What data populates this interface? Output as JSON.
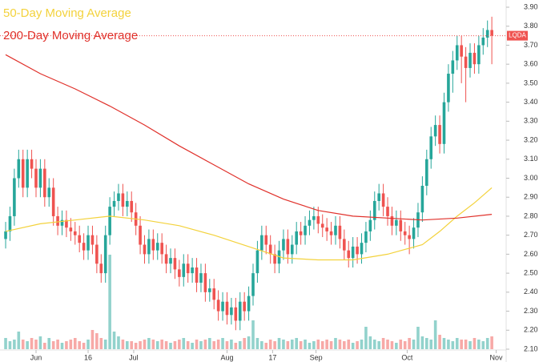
{
  "chart_data": {
    "type": "candlestick",
    "ticker": "LQDA",
    "legend": [
      {
        "label": "50-Day Moving Average",
        "color": "#f3d23c"
      },
      {
        "label": "200-Day Moving Average",
        "color": "#e0302a"
      }
    ],
    "up_color": "#26a69a",
    "down_color": "#ef5350",
    "x": [
      0,
      1,
      2,
      3,
      4,
      5,
      6,
      7,
      8,
      9,
      10,
      11,
      12,
      13,
      14,
      15,
      16,
      17,
      18,
      19,
      20,
      21,
      22,
      23,
      24,
      25,
      26,
      27,
      28,
      29,
      30,
      31,
      32,
      33,
      34,
      35,
      36,
      37,
      38,
      39,
      40,
      41,
      42,
      43,
      44,
      45,
      46,
      47,
      48,
      49,
      50,
      51,
      52,
      53,
      54,
      55,
      56,
      57,
      58,
      59,
      60,
      61,
      62,
      63,
      64,
      65,
      66,
      67,
      68,
      69,
      70,
      71,
      72,
      73,
      74,
      75,
      76,
      77,
      78,
      79,
      80,
      81,
      82,
      83,
      84,
      85,
      86,
      87,
      88,
      89,
      90,
      91,
      92,
      93,
      94,
      95,
      96,
      97,
      98,
      99,
      100,
      101,
      102,
      103,
      104,
      105,
      106,
      107,
      108,
      109,
      110,
      111,
      112
    ],
    "open": [
      2.68,
      2.72,
      2.8,
      3.0,
      3.1,
      2.95,
      3.1,
      3.05,
      2.95,
      3.05,
      2.9,
      2.95,
      2.8,
      2.75,
      2.78,
      2.74,
      2.72,
      2.7,
      2.66,
      2.62,
      2.7,
      2.65,
      2.55,
      2.5,
      2.7,
      2.85,
      2.88,
      2.92,
      2.85,
      2.88,
      2.82,
      2.75,
      2.65,
      2.6,
      2.68,
      2.62,
      2.66,
      2.6,
      2.55,
      2.58,
      2.52,
      2.48,
      2.55,
      2.5,
      2.53,
      2.45,
      2.5,
      2.4,
      2.42,
      2.36,
      2.3,
      2.35,
      2.28,
      2.32,
      2.25,
      2.35,
      2.3,
      2.38,
      2.5,
      2.62,
      2.7,
      2.65,
      2.6,
      2.55,
      2.62,
      2.68,
      2.6,
      2.65,
      2.72,
      2.7,
      2.75,
      2.78,
      2.8,
      2.76,
      2.74,
      2.72,
      2.7,
      2.75,
      2.68,
      2.62,
      2.58,
      2.64,
      2.6,
      2.66,
      2.72,
      2.78,
      2.88,
      2.92,
      2.85,
      2.8,
      2.75,
      2.78,
      2.72,
      2.7,
      2.68,
      2.74,
      2.82,
      2.96,
      3.1,
      3.22,
      3.28,
      3.18,
      3.4,
      3.55,
      3.62,
      3.7,
      3.64,
      3.58,
      3.66,
      3.6,
      3.7,
      3.74,
      3.78
    ],
    "high": [
      2.77,
      2.85,
      3.05,
      3.15,
      3.15,
      3.15,
      3.15,
      3.1,
      3.1,
      3.1,
      3.0,
      3.0,
      2.85,
      2.83,
      2.83,
      2.79,
      2.77,
      2.75,
      2.71,
      2.75,
      2.75,
      2.7,
      2.6,
      2.75,
      2.9,
      2.93,
      2.97,
      2.97,
      2.93,
      2.93,
      2.87,
      2.8,
      2.7,
      2.73,
      2.73,
      2.71,
      2.71,
      2.65,
      2.63,
      2.63,
      2.57,
      2.6,
      2.6,
      2.58,
      2.58,
      2.55,
      2.55,
      2.47,
      2.47,
      2.41,
      2.4,
      2.4,
      2.37,
      2.37,
      2.4,
      2.4,
      2.43,
      2.55,
      2.67,
      2.75,
      2.75,
      2.7,
      2.65,
      2.67,
      2.73,
      2.73,
      2.7,
      2.77,
      2.77,
      2.8,
      2.83,
      2.85,
      2.85,
      2.81,
      2.79,
      2.77,
      2.8,
      2.8,
      2.73,
      2.67,
      2.69,
      2.69,
      2.71,
      2.77,
      2.83,
      2.93,
      2.97,
      2.97,
      2.9,
      2.85,
      2.83,
      2.83,
      2.77,
      2.75,
      2.79,
      2.87,
      3.01,
      3.15,
      3.27,
      3.33,
      3.33,
      3.45,
      3.6,
      3.67,
      3.75,
      3.75,
      3.69,
      3.71,
      3.71,
      3.75,
      3.79,
      3.83,
      3.85
    ],
    "low": [
      2.63,
      2.67,
      2.75,
      2.95,
      2.9,
      2.9,
      3.0,
      2.9,
      2.9,
      2.85,
      2.85,
      2.75,
      2.7,
      2.7,
      2.69,
      2.67,
      2.65,
      2.61,
      2.57,
      2.57,
      2.6,
      2.5,
      2.45,
      2.45,
      2.65,
      2.8,
      2.83,
      2.8,
      2.8,
      2.77,
      2.7,
      2.6,
      2.55,
      2.55,
      2.57,
      2.57,
      2.55,
      2.5,
      2.5,
      2.47,
      2.43,
      2.43,
      2.45,
      2.45,
      2.4,
      2.4,
      2.35,
      2.35,
      2.31,
      2.25,
      2.25,
      2.23,
      2.23,
      2.2,
      2.2,
      2.25,
      2.25,
      2.33,
      2.45,
      2.57,
      2.6,
      2.55,
      2.5,
      2.5,
      2.57,
      2.55,
      2.55,
      2.6,
      2.65,
      2.65,
      2.7,
      2.73,
      2.71,
      2.69,
      2.67,
      2.65,
      2.65,
      2.63,
      2.57,
      2.53,
      2.53,
      2.55,
      2.55,
      2.61,
      2.67,
      2.73,
      2.83,
      2.8,
      2.75,
      2.7,
      2.7,
      2.67,
      2.65,
      2.6,
      2.63,
      2.69,
      2.77,
      2.91,
      3.05,
      3.17,
      3.13,
      3.13,
      3.35,
      3.45,
      3.57,
      3.5,
      3.4,
      3.53,
      3.55,
      3.55,
      3.65,
      3.69,
      3.6
    ],
    "close": [
      2.72,
      2.8,
      3.0,
      3.1,
      2.95,
      3.1,
      3.05,
      2.95,
      3.05,
      2.9,
      2.95,
      2.8,
      2.75,
      2.78,
      2.74,
      2.72,
      2.7,
      2.66,
      2.62,
      2.7,
      2.65,
      2.55,
      2.5,
      2.7,
      2.85,
      2.88,
      2.92,
      2.85,
      2.88,
      2.82,
      2.75,
      2.65,
      2.6,
      2.68,
      2.62,
      2.66,
      2.6,
      2.55,
      2.58,
      2.52,
      2.48,
      2.55,
      2.5,
      2.53,
      2.45,
      2.5,
      2.4,
      2.42,
      2.36,
      2.3,
      2.35,
      2.28,
      2.32,
      2.25,
      2.35,
      2.3,
      2.38,
      2.5,
      2.62,
      2.7,
      2.65,
      2.6,
      2.55,
      2.62,
      2.68,
      2.6,
      2.65,
      2.72,
      2.7,
      2.75,
      2.78,
      2.8,
      2.76,
      2.74,
      2.72,
      2.7,
      2.75,
      2.68,
      2.62,
      2.58,
      2.64,
      2.6,
      2.66,
      2.72,
      2.78,
      2.88,
      2.92,
      2.85,
      2.8,
      2.75,
      2.78,
      2.72,
      2.7,
      2.68,
      2.74,
      2.82,
      2.96,
      3.1,
      3.22,
      3.28,
      3.18,
      3.4,
      3.55,
      3.62,
      3.7,
      3.64,
      3.58,
      3.66,
      3.6,
      3.7,
      3.74,
      3.78,
      3.75
    ],
    "volume": [
      14,
      10,
      12,
      22,
      12,
      10,
      14,
      12,
      16,
      8,
      14,
      10,
      12,
      8,
      10,
      12,
      14,
      10,
      8,
      12,
      24,
      20,
      14,
      12,
      118,
      22,
      16,
      12,
      10,
      10,
      8,
      10,
      12,
      14,
      12,
      10,
      12,
      10,
      8,
      10,
      12,
      14,
      10,
      8,
      12,
      10,
      12,
      14,
      10,
      12,
      14,
      10,
      12,
      8,
      10,
      14,
      16,
      36,
      14,
      10,
      8,
      12,
      10,
      14,
      12,
      10,
      12,
      14,
      10,
      12,
      8,
      10,
      12,
      10,
      12,
      10,
      14,
      12,
      10,
      12,
      8,
      10,
      12,
      28,
      16,
      12,
      10,
      14,
      12,
      10,
      8,
      12,
      10,
      14,
      12,
      28,
      16,
      14,
      12,
      36,
      18,
      14,
      12,
      10,
      14,
      12,
      12,
      10,
      14,
      12,
      10,
      14,
      16
    ],
    "ma50": {
      "x": [
        0,
        8,
        16,
        24,
        32,
        40,
        48,
        56,
        64,
        72,
        80,
        88,
        96,
        100,
        104,
        108,
        112
      ],
      "values": [
        2.72,
        2.76,
        2.78,
        2.8,
        2.78,
        2.75,
        2.7,
        2.64,
        2.58,
        2.57,
        2.57,
        2.6,
        2.65,
        2.72,
        2.8,
        2.87,
        2.95
      ]
    },
    "ma200": {
      "x": [
        0,
        8,
        16,
        24,
        32,
        40,
        48,
        56,
        64,
        72,
        80,
        88,
        96,
        104,
        112
      ],
      "values": [
        3.65,
        3.55,
        3.47,
        3.38,
        3.28,
        3.17,
        3.07,
        2.97,
        2.89,
        2.83,
        2.8,
        2.79,
        2.78,
        2.79,
        2.81
      ]
    },
    "xlim": [
      -1.3,
      115.3
    ],
    "ylim": [
      2.1,
      3.9
    ],
    "xticks": [
      {
        "value": 7,
        "label": "Jun"
      },
      {
        "value": 19,
        "label": "16"
      },
      {
        "value": 29.5,
        "label": "Jul"
      },
      {
        "value": 51,
        "label": "Aug"
      },
      {
        "value": 61.5,
        "label": "17"
      },
      {
        "value": 71.5,
        "label": "Sep"
      },
      {
        "value": 92.5,
        "label": "Oct"
      },
      {
        "value": 113,
        "label": "Nov"
      }
    ],
    "yticks": [
      {
        "value": 2.1,
        "label": "2.10"
      },
      {
        "value": 2.2,
        "label": "2.20"
      },
      {
        "value": 2.3,
        "label": "2.30"
      },
      {
        "value": 2.4,
        "label": "2.40"
      },
      {
        "value": 2.5,
        "label": "2.50"
      },
      {
        "value": 2.6,
        "label": "2.60"
      },
      {
        "value": 2.7,
        "label": "2.70"
      },
      {
        "value": 2.8,
        "label": "2.80"
      },
      {
        "value": 2.9,
        "label": "2.90"
      },
      {
        "value": 3.0,
        "label": "3.00"
      },
      {
        "value": 3.1,
        "label": "3.10"
      },
      {
        "value": 3.2,
        "label": "3.20"
      },
      {
        "value": 3.3,
        "label": "3.30"
      },
      {
        "value": 3.4,
        "label": "3.40"
      },
      {
        "value": 3.5,
        "label": "3.50"
      },
      {
        "value": 3.6,
        "label": "3.60"
      },
      {
        "value": 3.7,
        "label": "3.70"
      },
      {
        "value": 3.8,
        "label": "3.80"
      },
      {
        "value": 3.9,
        "label": "3.90"
      }
    ]
  }
}
